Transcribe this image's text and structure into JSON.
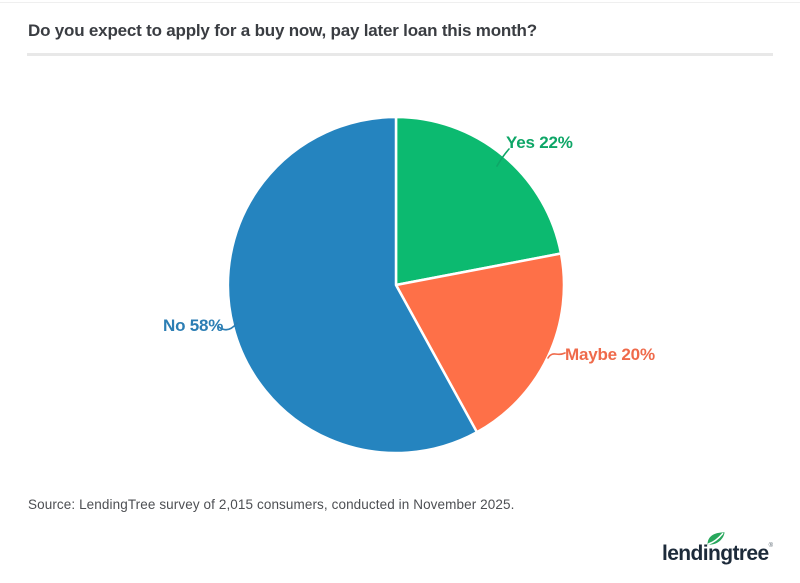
{
  "header": {
    "title": "Do you expect to apply for a buy now, pay later loan this month?"
  },
  "chart_data": {
    "type": "pie",
    "title": "Do you expect to apply for a buy now, pay later loan this month?",
    "start_angle_deg": 0,
    "direction": "clockwise",
    "legend_position": "outside-data-labels",
    "slices": [
      {
        "label": "Yes",
        "value": 22,
        "display": "Yes 22%",
        "color": "#0cba70",
        "label_color": "#0ea667"
      },
      {
        "label": "Maybe",
        "value": 20,
        "display": "Maybe 20%",
        "color": "#fe7048",
        "label_color": "#ef6a4b"
      },
      {
        "label": "No",
        "value": 58,
        "display": "No 58%",
        "color": "#2584bf",
        "label_color": "#2c7eb4"
      }
    ]
  },
  "footer": {
    "source": "Source: LendingTree survey of 2,015 consumers, conducted in November 2025.",
    "logo_text": "lendingtree",
    "logo_reg_mark": "®"
  },
  "brand": {
    "logo_navy": "#1d2b3a",
    "leaf_green": "#27a75c",
    "divider_gray": "#e8e8e8"
  }
}
